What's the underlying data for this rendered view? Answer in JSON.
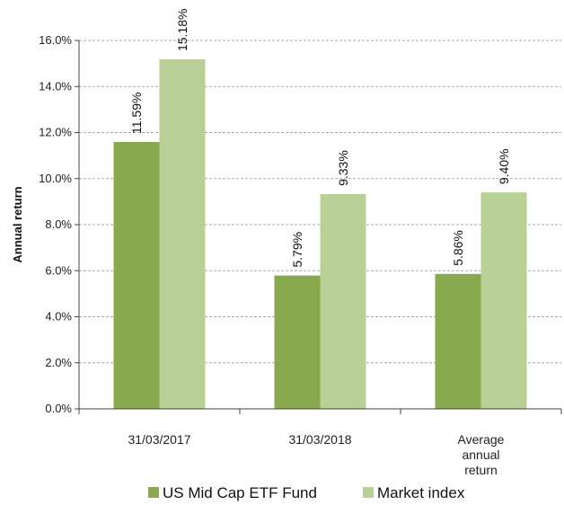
{
  "chart_data": {
    "type": "bar",
    "categories": [
      [
        "31/03/2017"
      ],
      [
        "31/03/2018"
      ],
      [
        "Average",
        "annual",
        "return"
      ]
    ],
    "series": [
      {
        "name": "US Mid Cap ETF Fund",
        "values": [
          11.59,
          5.79,
          5.86
        ],
        "labels": [
          "11.59%",
          "5.79%",
          "5.86%"
        ],
        "color": "#88a94d"
      },
      {
        "name": "Market index",
        "values": [
          15.18,
          9.33,
          9.4
        ],
        "labels": [
          "15.18%",
          "9.33%",
          "9.40%"
        ],
        "color": "#b8d096"
      }
    ],
    "ylabel": "Annual return",
    "ylim": [
      0,
      16
    ],
    "yticks": [
      "0.0%",
      "2.0%",
      "4.0%",
      "6.0%",
      "8.0%",
      "10.0%",
      "12.0%",
      "14.0%",
      "16.0%"
    ],
    "grid": true,
    "legend": "bottom"
  }
}
